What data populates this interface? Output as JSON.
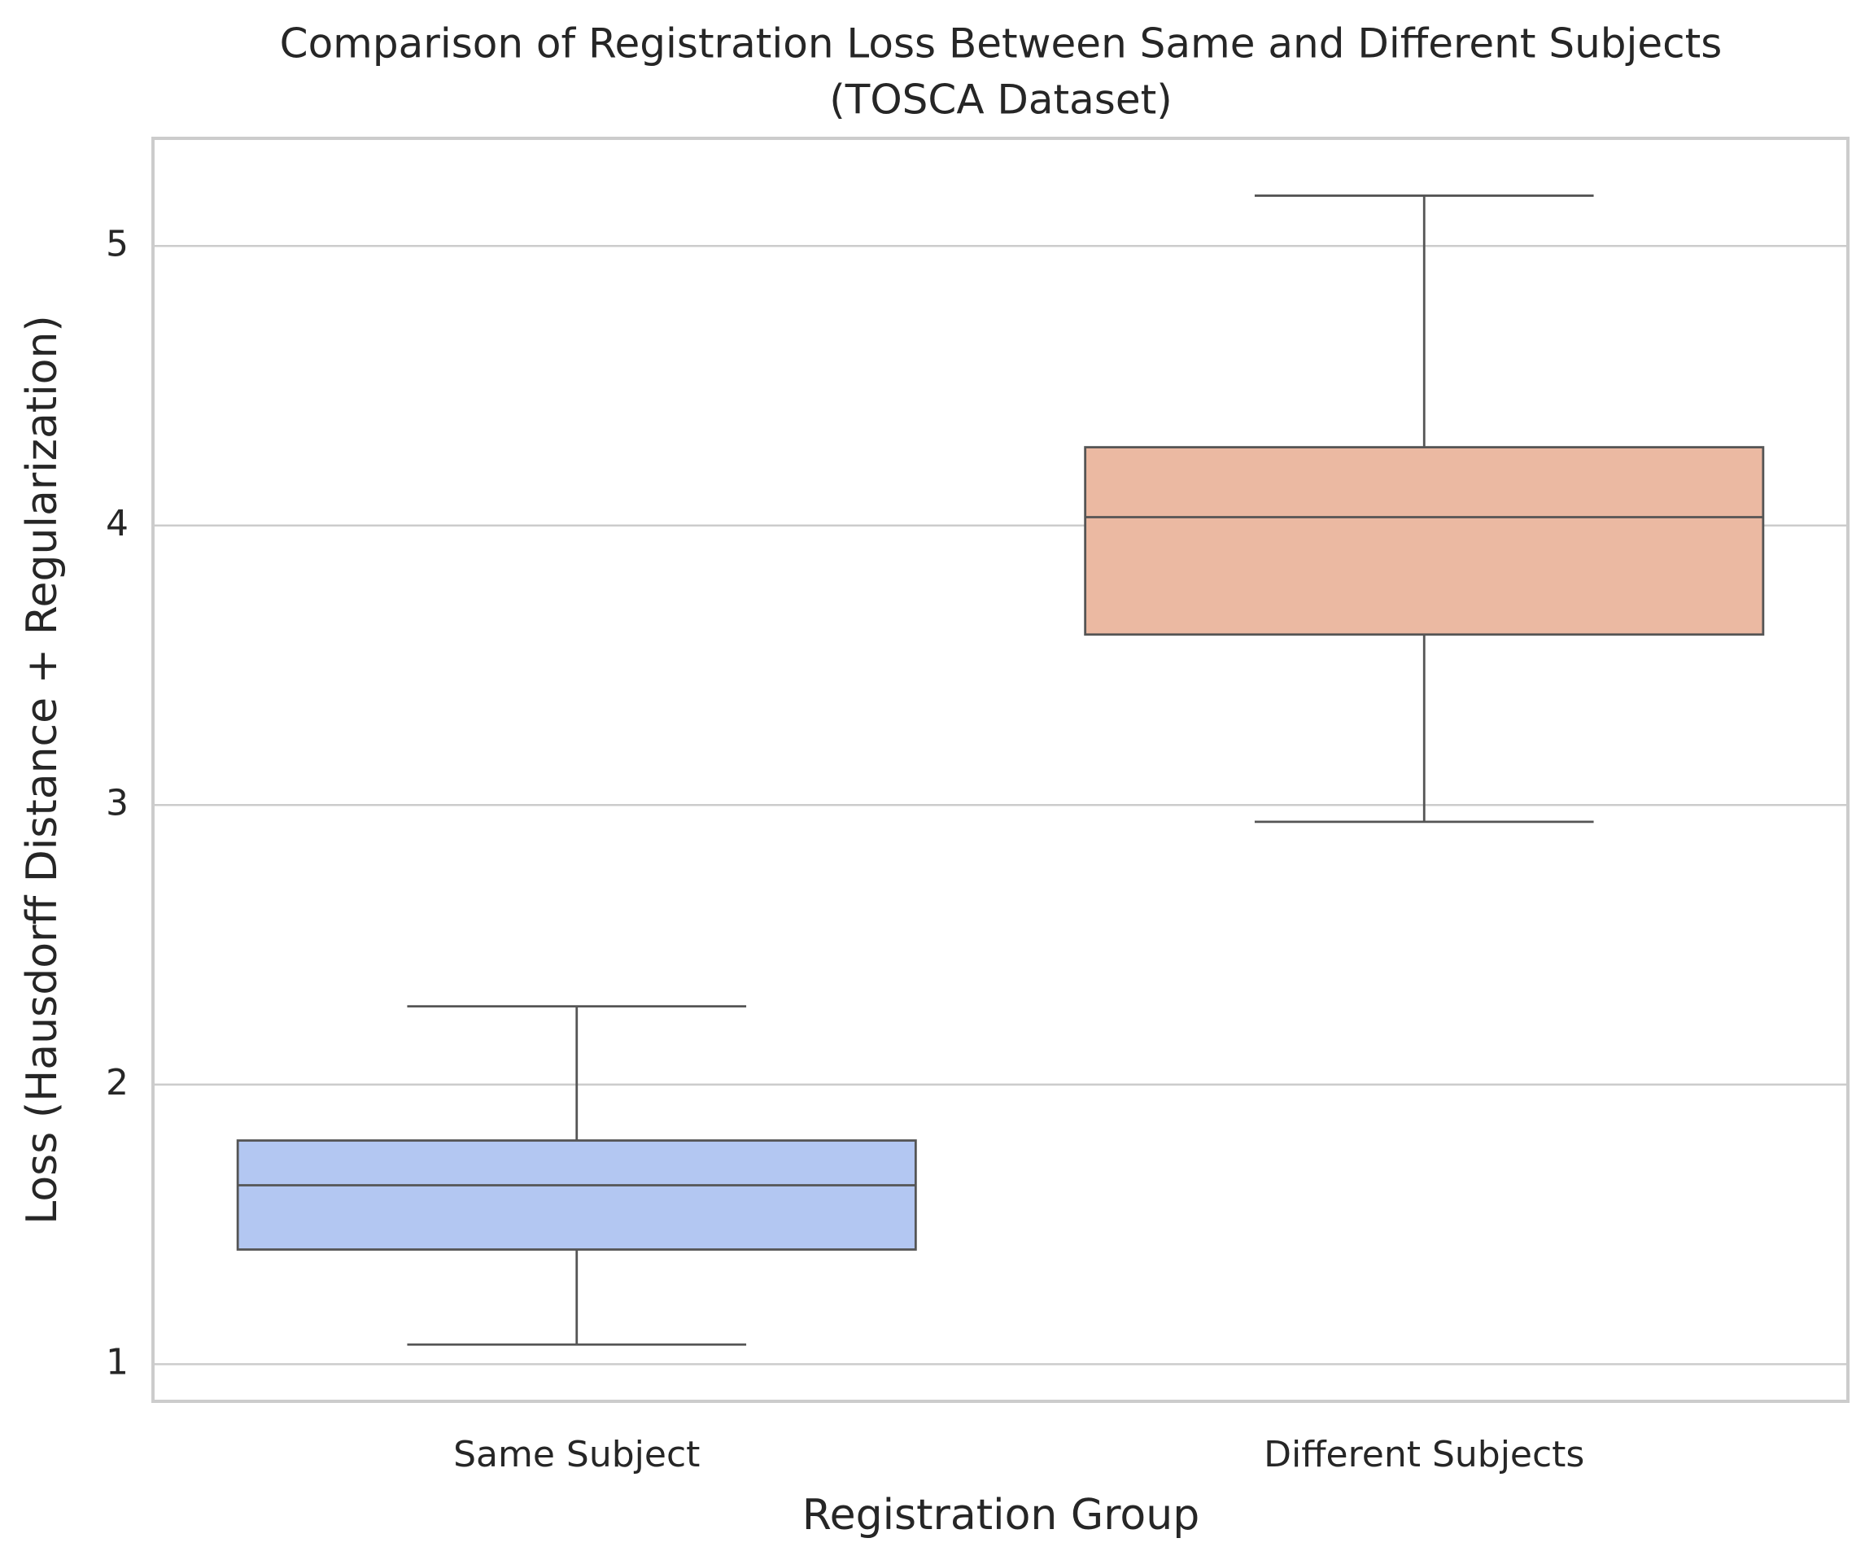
{
  "chart_data": {
    "type": "box",
    "title": "Comparison of Registration Loss Between Same and Different Subjects",
    "subtitle": "(TOSCA Dataset)",
    "x_label": "Registration Group",
    "y_label": "Loss (Hausdorff Distance + Regularization)",
    "categories": [
      "Same Subject",
      "Different Subjects"
    ],
    "boxes": [
      {
        "whislo": 1.07,
        "q1": 1.41,
        "median": 1.64,
        "q3": 1.8,
        "whishi": 2.28,
        "color": "#b3c7f2"
      },
      {
        "whislo": 2.94,
        "q1": 3.61,
        "median": 4.03,
        "q3": 4.28,
        "whishi": 5.18,
        "color": "#ebb9a2"
      }
    ],
    "ylim": [
      0.867,
      5.385
    ],
    "yticks": [
      1,
      2,
      3,
      4,
      5
    ],
    "grid": true
  }
}
